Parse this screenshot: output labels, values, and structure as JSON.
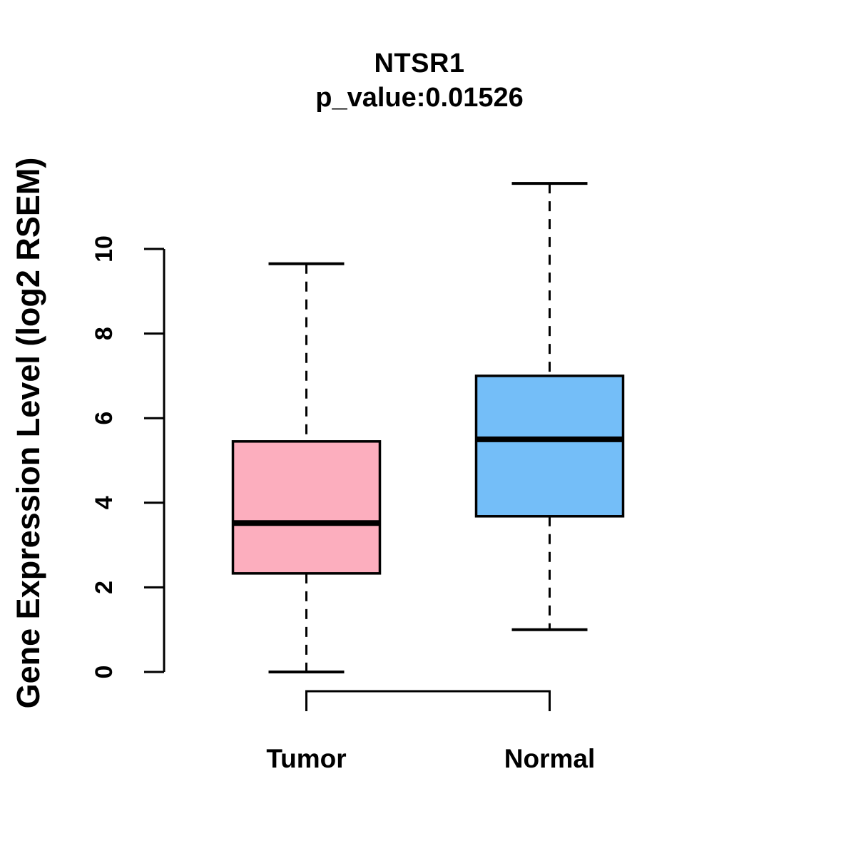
{
  "chart_data": {
    "type": "boxplot",
    "title": "NTSR1",
    "subtitle": "p_value:0.01526",
    "xlabel": "",
    "ylabel": "Gene Expression Level (log2 RSEM)",
    "ylim": [
      0,
      11.6
    ],
    "yticks": [
      0,
      2,
      4,
      6,
      8,
      10
    ],
    "grid": false,
    "legend_position": "none",
    "categories": [
      "Tumor",
      "Normal"
    ],
    "series": [
      {
        "name": "Tumor",
        "box_color": "#FCAEBE",
        "lower_whisker": 0,
        "q1": 2.33,
        "median": 3.52,
        "q3": 5.45,
        "upper_whisker": 9.65
      },
      {
        "name": "Normal",
        "box_color": "#74BEF8",
        "lower_whisker": 1.0,
        "q1": 3.68,
        "median": 5.5,
        "q3": 7.0,
        "upper_whisker": 11.55
      }
    ],
    "colors": {
      "stroke": "#000000",
      "background": "#FFFFFF"
    }
  }
}
